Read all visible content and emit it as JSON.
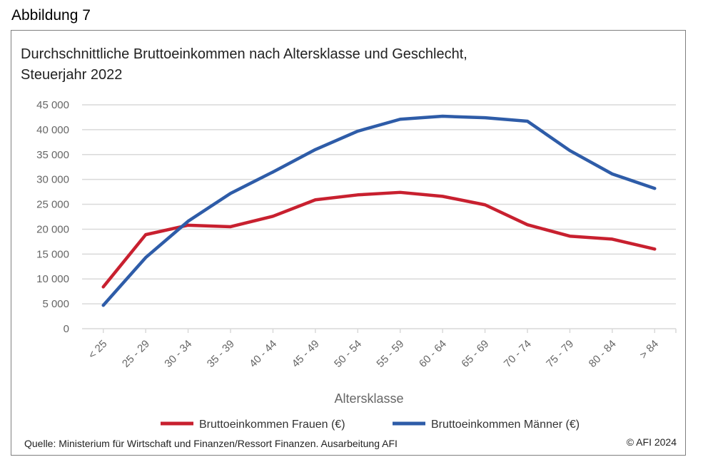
{
  "figure_label": "Abbildung 7",
  "chart_data": {
    "type": "line",
    "title": "Durchschnittliche Bruttoeinkommen nach Altersklasse und Geschlecht, Steuerjahr 2022",
    "title_lines": [
      "Durchschnittliche Bruttoeinkommen nach Altersklasse und Geschlecht,",
      "Steuerjahr 2022"
    ],
    "xlabel": "Altersklasse",
    "ylabel": "",
    "categories": [
      "< 25",
      "25 - 29",
      "30 - 34",
      "35 - 39",
      "40 - 44",
      "45 - 49",
      "50 - 54",
      "55 - 59",
      "60 - 64",
      "65 - 69",
      "70 - 74",
      "75 - 79",
      "80 - 84",
      "> 84"
    ],
    "ylim": [
      0,
      45000
    ],
    "yticks": [
      0,
      5000,
      10000,
      15000,
      20000,
      25000,
      30000,
      35000,
      40000,
      45000
    ],
    "ytick_labels": [
      "0",
      "5 000",
      "10 000",
      "15 000",
      "20 000",
      "25 000",
      "30 000",
      "35 000",
      "40 000",
      "45 000"
    ],
    "grid": true,
    "legend_position": "bottom",
    "series": [
      {
        "name": "Bruttoeinkommen Frauen (€)",
        "color": "#c8202f",
        "values": [
          8400,
          18900,
          20800,
          20500,
          22600,
          25900,
          26900,
          27400,
          26600,
          24900,
          20900,
          18600,
          18000,
          16000
        ]
      },
      {
        "name": "Bruttoeinkommen Männer (€)",
        "color": "#2e5ca8",
        "values": [
          4700,
          14300,
          21600,
          27200,
          31500,
          36000,
          39700,
          42100,
          42700,
          42400,
          41700,
          35800,
          31100,
          28200
        ]
      }
    ]
  },
  "source": "Quelle: Ministerium für Wirtschaft und Finanzen/Ressort Finanzen. Ausarbeitung AFI",
  "copyright": "© AFI 2024"
}
